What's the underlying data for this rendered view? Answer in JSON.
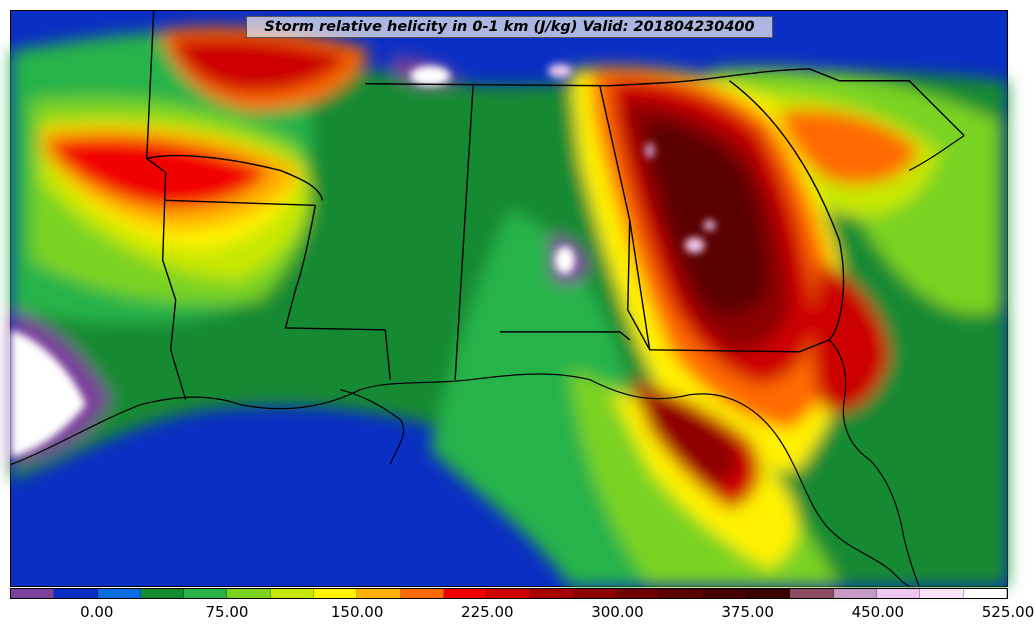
{
  "title": "Storm relative helicity in 0-1 km (J/kg) Valid: 201804230400",
  "colorbar": {
    "colors": [
      "#7b3f9c",
      "#0a2fc4",
      "#0b6be0",
      "#138a30",
      "#27b34a",
      "#7ad321",
      "#c7e705",
      "#fff200",
      "#ffb000",
      "#ff6a00",
      "#f20000",
      "#cc0000",
      "#a90000",
      "#8c0000",
      "#700000",
      "#5a0000",
      "#450000",
      "#3a0000",
      "#8c4a63",
      "#c79ac3",
      "#efc7ee",
      "#fbe4fb",
      "#ffffff"
    ],
    "tick_labels": [
      "0.00",
      "75.00",
      "150.00",
      "225.00",
      "300.00",
      "375.00",
      "450.00",
      "525.00"
    ]
  }
}
